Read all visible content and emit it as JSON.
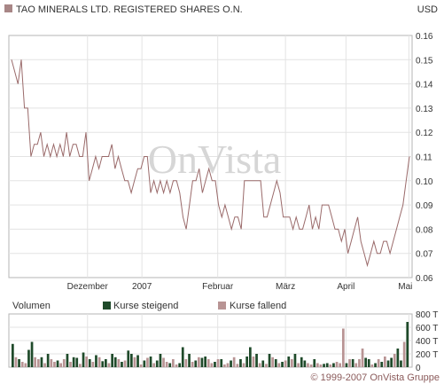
{
  "chart_data": [
    {
      "type": "line",
      "title": "TAO MINERALS LTD. REGISTERED SHARES O.N.",
      "currency": "USD",
      "watermark": "OnVista",
      "legend_color": "#a88686",
      "line_color": "#9a6a6a",
      "ylim": [
        0.06,
        0.16
      ],
      "y_ticks": [
        "0.06",
        "0.07",
        "0.08",
        "0.09",
        "0.10",
        "0.11",
        "0.12",
        "0.13",
        "0.14",
        "0.15",
        "0.16"
      ],
      "x_labels": [
        {
          "label": "Dezember",
          "pos": 0.195
        },
        {
          "label": "2007",
          "pos": 0.33
        },
        {
          "label": "Februar",
          "pos": 0.518
        },
        {
          "label": "März",
          "pos": 0.686
        },
        {
          "label": "April",
          "pos": 0.836
        },
        {
          "label": "Mai",
          "pos": 0.992
        }
      ],
      "values": [
        0.15,
        0.145,
        0.14,
        0.15,
        0.13,
        0.13,
        0.11,
        0.115,
        0.115,
        0.12,
        0.11,
        0.115,
        0.11,
        0.115,
        0.11,
        0.115,
        0.11,
        0.12,
        0.11,
        0.115,
        0.115,
        0.11,
        0.11,
        0.12,
        0.1,
        0.105,
        0.11,
        0.105,
        0.11,
        0.11,
        0.11,
        0.115,
        0.105,
        0.11,
        0.105,
        0.1,
        0.1,
        0.095,
        0.1,
        0.105,
        0.105,
        0.11,
        0.11,
        0.095,
        0.1,
        0.095,
        0.1,
        0.095,
        0.1,
        0.095,
        0.1,
        0.1,
        0.095,
        0.085,
        0.08,
        0.09,
        0.1,
        0.1,
        0.105,
        0.095,
        0.1,
        0.105,
        0.1,
        0.1,
        0.09,
        0.085,
        0.09,
        0.085,
        0.08,
        0.085,
        0.085,
        0.08,
        0.1,
        0.1,
        0.1,
        0.1,
        0.1,
        0.1,
        0.085,
        0.085,
        0.09,
        0.095,
        0.1,
        0.095,
        0.085,
        0.085,
        0.085,
        0.08,
        0.085,
        0.08,
        0.08,
        0.085,
        0.09,
        0.08,
        0.085,
        0.08,
        0.09,
        0.09,
        0.09,
        0.085,
        0.08,
        0.08,
        0.075,
        0.08,
        0.07,
        0.075,
        0.08,
        0.085,
        0.075,
        0.07,
        0.065,
        0.07,
        0.075,
        0.07,
        0.07,
        0.075,
        0.075,
        0.07,
        0.075,
        0.08,
        0.085,
        0.09,
        0.1,
        0.11
      ]
    },
    {
      "type": "bar",
      "title": "Volumen",
      "ylim": [
        0,
        800
      ],
      "y_ticks": [
        "0",
        "200 T",
        "400 T",
        "600 T",
        "800 T"
      ],
      "legend": [
        {
          "name": "Kurse steigend",
          "color": "#1f4a2a"
        },
        {
          "name": "Kurse fallend",
          "color": "#b89494"
        }
      ],
      "values": [
        350,
        150,
        120,
        80,
        60,
        260,
        380,
        150,
        120,
        150,
        60,
        200,
        120,
        80,
        100,
        60,
        120,
        200,
        80,
        150,
        140,
        50,
        220,
        160,
        120,
        80,
        180,
        150,
        90,
        120,
        60,
        200,
        150,
        120,
        80,
        100,
        250,
        200,
        150,
        180,
        40,
        100,
        140,
        160,
        60,
        100,
        200,
        140,
        80,
        60,
        120,
        40,
        60,
        300,
        120,
        200,
        80,
        100,
        150,
        140,
        160,
        120,
        60,
        80,
        120,
        120,
        40,
        60,
        100,
        150,
        50,
        120,
        60,
        160,
        300,
        160,
        200,
        60,
        100,
        50,
        200,
        150,
        120,
        60,
        80,
        100,
        160,
        120,
        200,
        60,
        150,
        100,
        60,
        40,
        120,
        60,
        40,
        50,
        60,
        40,
        60,
        80,
        60,
        580,
        60,
        120,
        120,
        60,
        120,
        280,
        140,
        120,
        40,
        60,
        120,
        80,
        160,
        100,
        140,
        200,
        280,
        100,
        380,
        680
      ],
      "rising": [
        1,
        0,
        1,
        0,
        0,
        1,
        1,
        0,
        0,
        1,
        0,
        1,
        0,
        0,
        1,
        0,
        0,
        1,
        0,
        1,
        1,
        0,
        1,
        0,
        1,
        0,
        1,
        0,
        1,
        1,
        0,
        1,
        1,
        0,
        1,
        0,
        1,
        1,
        0,
        1,
        0,
        1,
        0,
        1,
        0,
        1,
        1,
        0,
        0,
        1,
        0,
        0,
        1,
        1,
        0,
        1,
        0,
        1,
        0,
        1,
        1,
        0,
        0,
        1,
        0,
        1,
        0,
        0,
        1,
        0,
        0,
        1,
        0,
        1,
        1,
        0,
        1,
        0,
        1,
        0,
        1,
        0,
        1,
        0,
        1,
        0,
        1,
        0,
        1,
        0,
        1,
        1,
        0,
        0,
        1,
        0,
        0,
        1,
        1,
        0,
        1,
        0,
        0,
        0,
        1,
        0,
        1,
        0,
        0,
        0,
        1,
        1,
        0,
        1,
        0,
        1,
        0,
        1,
        1,
        0,
        1,
        1,
        0,
        1
      ]
    }
  ],
  "footer": "© 1999-2007 OnVista Gruppe"
}
